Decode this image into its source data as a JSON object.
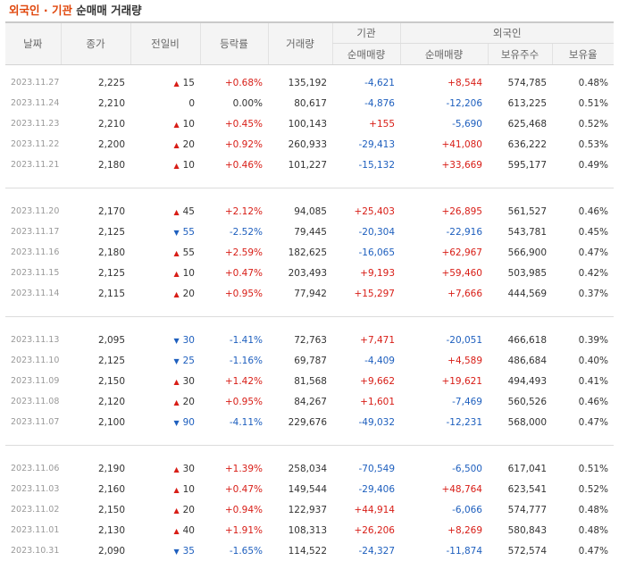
{
  "title": {
    "part1": "외국인 · 기관",
    "part2": " 순매매 거래량"
  },
  "colors": {
    "up": "#d81d16",
    "down": "#1e5fbe",
    "accent": "#e0460b"
  },
  "headers": {
    "date": "날짜",
    "close": "종가",
    "change": "전일비",
    "rate": "등락률",
    "volume": "거래량",
    "inst_group": "기관",
    "foreign_group": "외국인",
    "inst_net": "순매매량",
    "foreign_net": "순매매량",
    "holdings": "보유주수",
    "ratio": "보유율"
  },
  "groups": [
    [
      {
        "date": "2023.11.27",
        "close": "2,225",
        "dir": "up",
        "change": "15",
        "rate": "+0.68%",
        "volume": "135,192",
        "inst": "-4,621",
        "foreign": "+8,544",
        "holdings": "574,785",
        "ratio": "0.48%"
      },
      {
        "date": "2023.11.24",
        "close": "2,210",
        "dir": "none",
        "change": "0",
        "rate": "0.00%",
        "volume": "80,617",
        "inst": "-4,876",
        "foreign": "-12,206",
        "holdings": "613,225",
        "ratio": "0.51%"
      },
      {
        "date": "2023.11.23",
        "close": "2,210",
        "dir": "up",
        "change": "10",
        "rate": "+0.45%",
        "volume": "100,143",
        "inst": "+155",
        "foreign": "-5,690",
        "holdings": "625,468",
        "ratio": "0.52%"
      },
      {
        "date": "2023.11.22",
        "close": "2,200",
        "dir": "up",
        "change": "20",
        "rate": "+0.92%",
        "volume": "260,933",
        "inst": "-29,413",
        "foreign": "+41,080",
        "holdings": "636,222",
        "ratio": "0.53%"
      },
      {
        "date": "2023.11.21",
        "close": "2,180",
        "dir": "up",
        "change": "10",
        "rate": "+0.46%",
        "volume": "101,227",
        "inst": "-15,132",
        "foreign": "+33,669",
        "holdings": "595,177",
        "ratio": "0.49%"
      }
    ],
    [
      {
        "date": "2023.11.20",
        "close": "2,170",
        "dir": "up",
        "change": "45",
        "rate": "+2.12%",
        "volume": "94,085",
        "inst": "+25,403",
        "foreign": "+26,895",
        "holdings": "561,527",
        "ratio": "0.46%"
      },
      {
        "date": "2023.11.17",
        "close": "2,125",
        "dir": "down",
        "change": "55",
        "rate": "-2.52%",
        "volume": "79,445",
        "inst": "-20,304",
        "foreign": "-22,916",
        "holdings": "543,781",
        "ratio": "0.45%"
      },
      {
        "date": "2023.11.16",
        "close": "2,180",
        "dir": "up",
        "change": "55",
        "rate": "+2.59%",
        "volume": "182,625",
        "inst": "-16,065",
        "foreign": "+62,967",
        "holdings": "566,900",
        "ratio": "0.47%"
      },
      {
        "date": "2023.11.15",
        "close": "2,125",
        "dir": "up",
        "change": "10",
        "rate": "+0.47%",
        "volume": "203,493",
        "inst": "+9,193",
        "foreign": "+59,460",
        "holdings": "503,985",
        "ratio": "0.42%"
      },
      {
        "date": "2023.11.14",
        "close": "2,115",
        "dir": "up",
        "change": "20",
        "rate": "+0.95%",
        "volume": "77,942",
        "inst": "+15,297",
        "foreign": "+7,666",
        "holdings": "444,569",
        "ratio": "0.37%"
      }
    ],
    [
      {
        "date": "2023.11.13",
        "close": "2,095",
        "dir": "down",
        "change": "30",
        "rate": "-1.41%",
        "volume": "72,763",
        "inst": "+7,471",
        "foreign": "-20,051",
        "holdings": "466,618",
        "ratio": "0.39%"
      },
      {
        "date": "2023.11.10",
        "close": "2,125",
        "dir": "down",
        "change": "25",
        "rate": "-1.16%",
        "volume": "69,787",
        "inst": "-4,409",
        "foreign": "+4,589",
        "holdings": "486,684",
        "ratio": "0.40%"
      },
      {
        "date": "2023.11.09",
        "close": "2,150",
        "dir": "up",
        "change": "30",
        "rate": "+1.42%",
        "volume": "81,568",
        "inst": "+9,662",
        "foreign": "+19,621",
        "holdings": "494,493",
        "ratio": "0.41%"
      },
      {
        "date": "2023.11.08",
        "close": "2,120",
        "dir": "up",
        "change": "20",
        "rate": "+0.95%",
        "volume": "84,267",
        "inst": "+1,601",
        "foreign": "-7,469",
        "holdings": "560,526",
        "ratio": "0.46%"
      },
      {
        "date": "2023.11.07",
        "close": "2,100",
        "dir": "down",
        "change": "90",
        "rate": "-4.11%",
        "volume": "229,676",
        "inst": "-49,032",
        "foreign": "-12,231",
        "holdings": "568,000",
        "ratio": "0.47%"
      }
    ],
    [
      {
        "date": "2023.11.06",
        "close": "2,190",
        "dir": "up",
        "change": "30",
        "rate": "+1.39%",
        "volume": "258,034",
        "inst": "-70,549",
        "foreign": "-6,500",
        "holdings": "617,041",
        "ratio": "0.51%"
      },
      {
        "date": "2023.11.03",
        "close": "2,160",
        "dir": "up",
        "change": "10",
        "rate": "+0.47%",
        "volume": "149,544",
        "inst": "-29,406",
        "foreign": "+48,764",
        "holdings": "623,541",
        "ratio": "0.52%"
      },
      {
        "date": "2023.11.02",
        "close": "2,150",
        "dir": "up",
        "change": "20",
        "rate": "+0.94%",
        "volume": "122,937",
        "inst": "+44,914",
        "foreign": "-6,066",
        "holdings": "574,777",
        "ratio": "0.48%"
      },
      {
        "date": "2023.11.01",
        "close": "2,130",
        "dir": "up",
        "change": "40",
        "rate": "+1.91%",
        "volume": "108,313",
        "inst": "+26,206",
        "foreign": "+8,269",
        "holdings": "580,843",
        "ratio": "0.48%"
      },
      {
        "date": "2023.10.31",
        "close": "2,090",
        "dir": "down",
        "change": "35",
        "rate": "-1.65%",
        "volume": "114,522",
        "inst": "-24,327",
        "foreign": "-11,874",
        "holdings": "572,574",
        "ratio": "0.47%"
      }
    ]
  ]
}
